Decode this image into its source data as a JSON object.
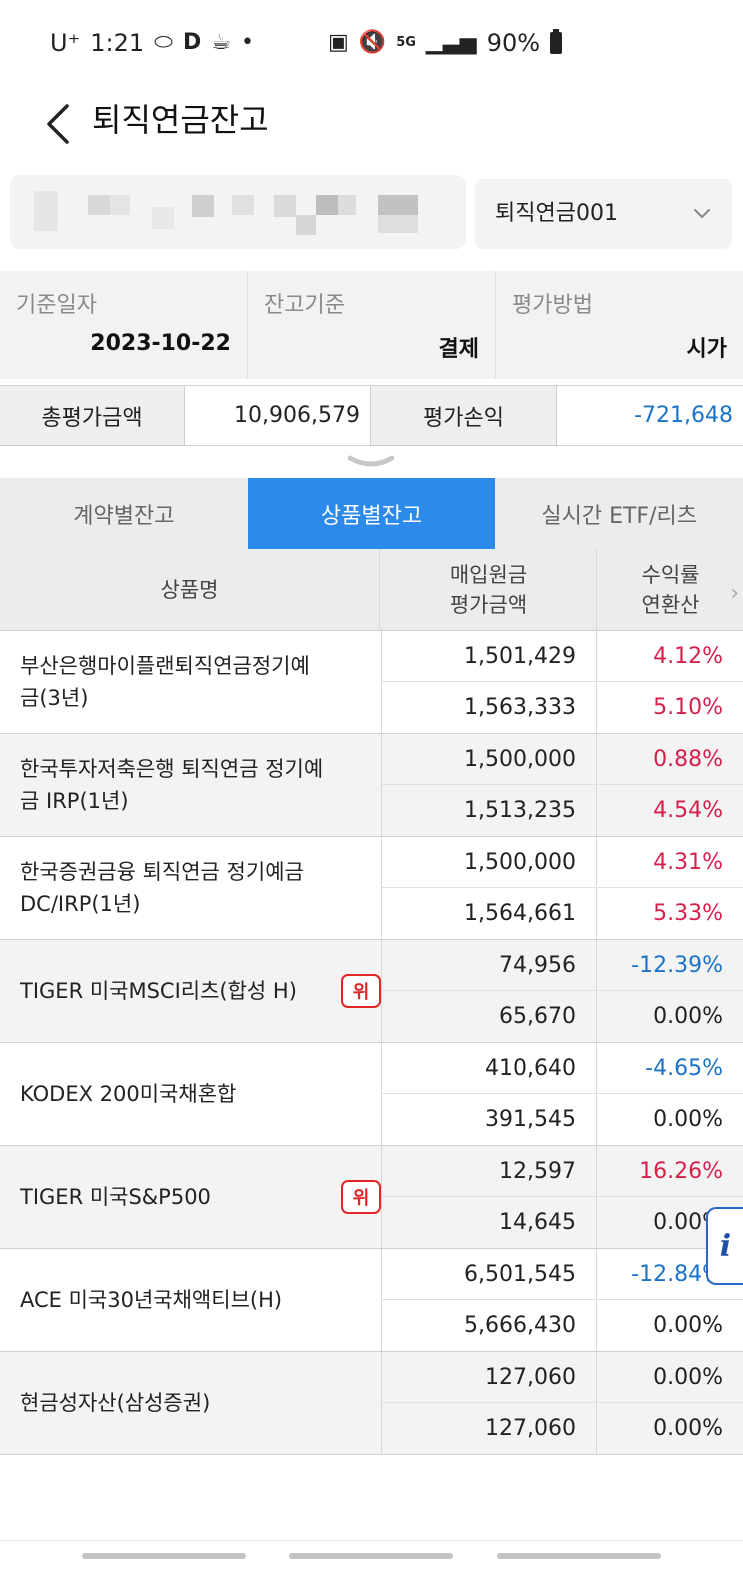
{
  "status_bar": {
    "carrier": "U⁺",
    "time": "1:21",
    "network": "5G",
    "battery": "90%"
  },
  "header": {
    "title": "퇴직연금잔고"
  },
  "account_select": {
    "value": "퇴직연금001"
  },
  "info": {
    "date_label": "기준일자",
    "date_value": "2023-10-22",
    "basis_label": "잔고기준",
    "basis_value": "결제",
    "method_label": "평가방법",
    "method_value": "시가"
  },
  "totals": {
    "total_label": "총평가금액",
    "total_value": "10,906,579",
    "pl_label": "평가손익",
    "pl_value": "-721,648"
  },
  "tabs": [
    {
      "label": "계약별잔고",
      "active": false
    },
    {
      "label": "상품별잔고",
      "active": true
    },
    {
      "label": "실시간 ETF/리츠",
      "active": false
    }
  ],
  "table": {
    "headers": {
      "name": "상품명",
      "amt_top": "매입원금",
      "amt_bottom": "평가금액",
      "rate_top": "수익률",
      "rate_bottom": "연환산"
    },
    "rows": [
      {
        "name": "부산은행마이플랜퇴직연금정기예금(3년)",
        "principal": "1,501,429",
        "valuation": "1,563,333",
        "rate": "4.12%",
        "annual": "5.10%",
        "rate_color": "red",
        "annual_color": "red",
        "warning": ""
      },
      {
        "name": "한국투자저축은행 퇴직연금 정기예금 IRP(1년)",
        "principal": "1,500,000",
        "valuation": "1,513,235",
        "rate": "0.88%",
        "annual": "4.54%",
        "rate_color": "red",
        "annual_color": "red",
        "warning": ""
      },
      {
        "name": "한국증권금융 퇴직연금 정기예금 DC/IRP(1년)",
        "principal": "1,500,000",
        "valuation": "1,564,661",
        "rate": "4.31%",
        "annual": "5.33%",
        "rate_color": "red",
        "annual_color": "red",
        "warning": ""
      },
      {
        "name": "TIGER 미국MSCI리츠(합성 H)",
        "principal": "74,956",
        "valuation": "65,670",
        "rate": "-12.39%",
        "annual": "0.00%",
        "rate_color": "blue",
        "annual_color": "black",
        "warning": "위"
      },
      {
        "name": "KODEX 200미국채혼합",
        "principal": "410,640",
        "valuation": "391,545",
        "rate": "-4.65%",
        "annual": "0.00%",
        "rate_color": "blue",
        "annual_color": "black",
        "warning": ""
      },
      {
        "name": "TIGER 미국S&P500",
        "principal": "12,597",
        "valuation": "14,645",
        "rate": "16.26%",
        "annual": "0.00%",
        "rate_color": "red",
        "annual_color": "black",
        "warning": "위"
      },
      {
        "name": "ACE 미국30년국채액티브(H)",
        "principal": "6,501,545",
        "valuation": "5,666,430",
        "rate": "-12.84%",
        "annual": "0.00%",
        "rate_color": "blue",
        "annual_color": "black",
        "warning": ""
      },
      {
        "name": "현금성자산(삼성증권)",
        "principal": "127,060",
        "valuation": "127,060",
        "rate": "0.00%",
        "annual": "0.00%",
        "rate_color": "black",
        "annual_color": "black",
        "warning": ""
      }
    ]
  },
  "info_button": {
    "label": "i"
  }
}
